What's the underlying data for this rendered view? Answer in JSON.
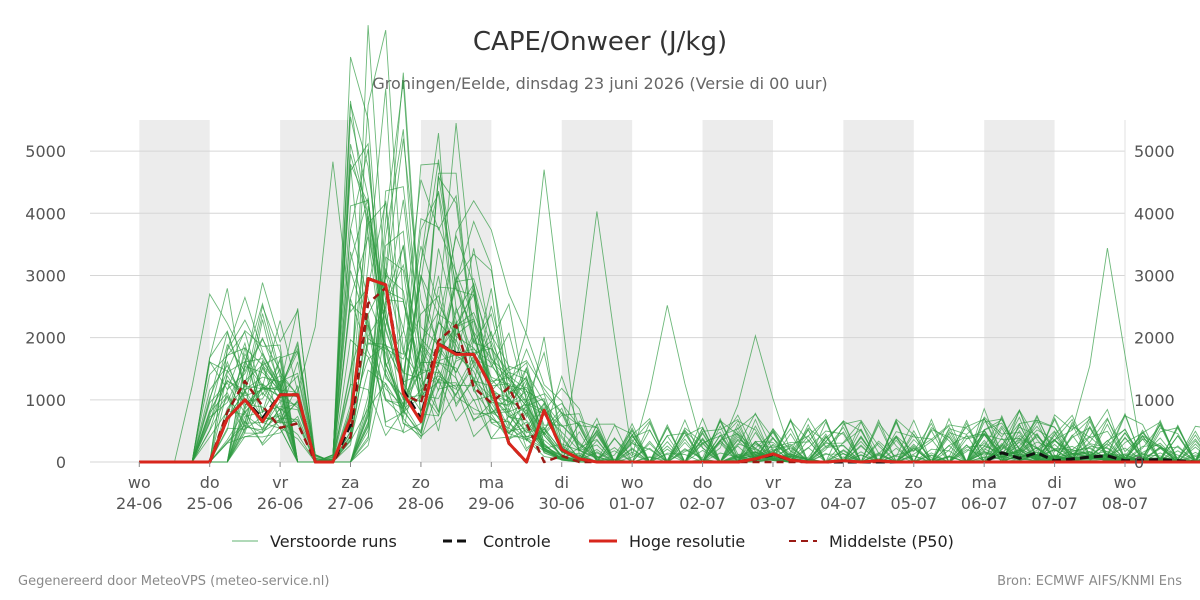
{
  "chart_data": {
    "type": "line",
    "title": "CAPE/Onweer (J/kg)",
    "subtitle": "Groningen/Eelde, dinsdag 23 juni 2026 (Versie di 00 uur)",
    "ylim": [
      0,
      5500
    ],
    "yticks": [
      0,
      1000,
      2000,
      3000,
      4000,
      5000
    ],
    "x_range": [
      -0.7,
      14
    ],
    "x_ticks": [
      {
        "x": 0,
        "day": "wo",
        "date": "24-06"
      },
      {
        "x": 1,
        "day": "do",
        "date": "25-06"
      },
      {
        "x": 2,
        "day": "vr",
        "date": "26-06"
      },
      {
        "x": 3,
        "day": "za",
        "date": "27-06"
      },
      {
        "x": 4,
        "day": "zo",
        "date": "28-06"
      },
      {
        "x": 5,
        "day": "ma",
        "date": "29-06"
      },
      {
        "x": 6,
        "day": "di",
        "date": "30-06"
      },
      {
        "x": 7,
        "day": "wo",
        "date": "01-07"
      },
      {
        "x": 8,
        "day": "do",
        "date": "02-07"
      },
      {
        "x": 9,
        "day": "vr",
        "date": "03-07"
      },
      {
        "x": 10,
        "day": "za",
        "date": "04-07"
      },
      {
        "x": 11,
        "day": "zo",
        "date": "05-07"
      },
      {
        "x": 12,
        "day": "ma",
        "date": "06-07"
      },
      {
        "x": 13,
        "day": "di",
        "date": "07-07"
      },
      {
        "x": 14,
        "day": "wo",
        "date": "08-07"
      }
    ],
    "shaded_days": [
      [
        0,
        1
      ],
      [
        2,
        3
      ],
      [
        4,
        5
      ],
      [
        6,
        7
      ],
      [
        8,
        9
      ],
      [
        10,
        11
      ],
      [
        12,
        13
      ]
    ],
    "grid": true,
    "legend_position": "bottom",
    "x_step": 0.25,
    "series": [
      {
        "name": "Controle",
        "style": "dashed",
        "color": "#111111",
        "values": [
          0,
          0,
          0,
          0,
          0,
          700,
          1000,
          700,
          1080,
          1080,
          0,
          0,
          600,
          2950,
          2850,
          1150,
          700,
          1900,
          1750,
          1730,
          1200,
          300,
          0,
          830,
          200,
          50,
          0,
          0,
          0,
          0,
          0,
          0,
          0,
          0,
          0,
          50,
          120,
          30,
          0,
          0,
          0,
          0,
          0,
          0,
          0,
          0,
          0,
          0,
          0,
          150,
          60,
          150,
          20,
          50,
          80,
          100,
          20,
          30,
          40,
          20,
          0,
          0,
          0,
          0,
          0,
          20,
          0,
          20,
          40,
          0,
          0,
          0,
          80
        ]
      },
      {
        "name": "Hoge resolutie",
        "style": "solid",
        "color": "#d8261c",
        "values": [
          0,
          0,
          0,
          0,
          0,
          700,
          1000,
          650,
          1080,
          1080,
          0,
          0,
          700,
          2950,
          2850,
          1100,
          650,
          1900,
          1730,
          1730,
          1200,
          300,
          0,
          830,
          200,
          50,
          0,
          0,
          0,
          0,
          0,
          0,
          0,
          0,
          0,
          50,
          130,
          30,
          0,
          0,
          20,
          0,
          20,
          0,
          0,
          0,
          0,
          0,
          0,
          0,
          0,
          0,
          0,
          0,
          0,
          0,
          0,
          0,
          0,
          0,
          0,
          0,
          0,
          0,
          0,
          0,
          0,
          0,
          0,
          0,
          0,
          0,
          0
        ]
      },
      {
        "name": "Middelste (P50)",
        "style": "dashed",
        "color": "#9a1a14",
        "values": [
          0,
          0,
          0,
          0,
          0,
          800,
          1300,
          900,
          550,
          620,
          0,
          0,
          400,
          2550,
          2800,
          1100,
          950,
          1950,
          2200,
          1200,
          950,
          1200,
          620,
          0,
          100,
          0,
          0,
          0,
          0,
          0,
          0,
          0,
          0,
          0,
          0,
          0,
          0,
          0,
          0,
          0,
          0,
          0,
          0,
          0,
          0,
          0,
          0,
          0,
          0,
          0,
          0,
          0,
          0,
          0,
          0,
          0,
          0,
          0,
          0,
          0,
          0,
          0,
          0,
          0,
          0,
          0,
          0,
          0,
          0,
          0,
          0,
          0,
          0
        ]
      },
      {
        "name": "Verstoorde runs",
        "style": "ensemble",
        "color": "#2e9a40",
        "count": 50,
        "peaks": [
          {
            "x": 1.0,
            "max": 2700
          },
          {
            "x": 2.8,
            "max": 4830
          },
          {
            "x": 3.7,
            "max": 5200
          },
          {
            "x": 4.5,
            "max": 5450
          },
          {
            "x": 5.8,
            "max": 4700
          },
          {
            "x": 6.5,
            "max": 4030
          },
          {
            "x": 7.5,
            "max": 2520
          },
          {
            "x": 8.8,
            "max": 2030
          },
          {
            "x": 13.7,
            "max": 3440
          }
        ]
      }
    ]
  },
  "legend": {
    "perturbed": "Verstoorde runs",
    "control": "Controle",
    "hires": "Hoge resolutie",
    "median": "Middelste (P50)"
  },
  "footer": {
    "left": "Gegenereerd door MeteoVPS (meteo-service.nl)",
    "right": "Bron: ECMWF AIFS/KNMI Ens"
  }
}
